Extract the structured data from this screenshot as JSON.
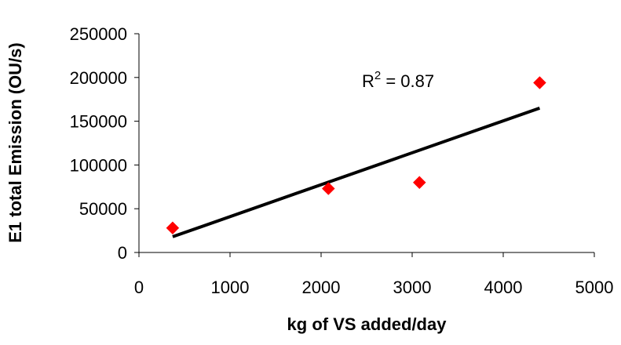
{
  "chart_data": {
    "type": "scatter",
    "title": "",
    "xlabel": "kg of VS added/day",
    "ylabel": "E1 total Emission (OU/s)",
    "xlim": [
      0,
      5000
    ],
    "ylim": [
      0,
      250000
    ],
    "x_ticks": [
      "0",
      "1000",
      "2000",
      "3000",
      "4000",
      "5000"
    ],
    "x_tick_values": [
      0,
      1000,
      2000,
      3000,
      4000,
      5000
    ],
    "y_ticks": [
      "0",
      "50000",
      "100000",
      "150000",
      "200000",
      "250000"
    ],
    "y_tick_values": [
      0,
      50000,
      100000,
      150000,
      200000,
      250000
    ],
    "grid": false,
    "series": [
      {
        "points": [
          {
            "x": 370,
            "y": 28000
          },
          {
            "x": 2080,
            "y": 73000
          },
          {
            "x": 3080,
            "y": 80000
          },
          {
            "x": 4400,
            "y": 194000
          }
        ],
        "marker": "diamond",
        "color": "#ff0000"
      }
    ],
    "trendline": {
      "x_start": 370,
      "y_start": 18000,
      "x_end": 4400,
      "y_end": 165000,
      "color": "#000000"
    },
    "annotation": {
      "r_label": "R",
      "r_exponent": "2",
      "r_value": " = 0.87"
    }
  }
}
